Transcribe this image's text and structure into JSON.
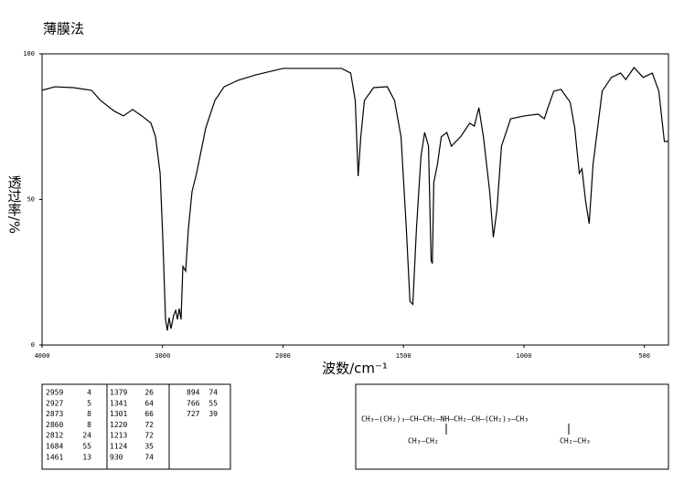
{
  "chart_data": {
    "type": "line",
    "title": "薄膜法",
    "x_label": "波数/cm⁻¹",
    "y_label": "透过率/%",
    "x": [
      4000,
      3894,
      3742,
      3590,
      3514,
      3400,
      3324,
      3248,
      3172,
      3096,
      3058,
      3020,
      2998,
      2975,
      2960,
      2945,
      2930,
      2907,
      2891,
      2876,
      2861,
      2846,
      2831,
      2808,
      2785,
      2755,
      2717,
      2641,
      2565,
      2489,
      2375,
      2223,
      2000,
      1890,
      1757,
      1719,
      1700,
      1688,
      1677,
      1662,
      1624,
      1567,
      1537,
      1510,
      1488,
      1473,
      1461,
      1446,
      1427,
      1412,
      1396,
      1385,
      1380,
      1374,
      1359,
      1343,
      1320,
      1301,
      1263,
      1225,
      1206,
      1187,
      1168,
      1142,
      1127,
      1112,
      1093,
      1055,
      998,
      941,
      915,
      903,
      876,
      846,
      808,
      789,
      770,
      759,
      744,
      729,
      713,
      675,
      637,
      599,
      577,
      543,
      505,
      467,
      440,
      417,
      400
    ],
    "series": [
      {
        "color": "#000000",
        "values": [
          87.5,
          88.7,
          88.4,
          87.5,
          84,
          80.3,
          78.7,
          80.9,
          78.7,
          76.2,
          71.5,
          59,
          37,
          8.8,
          5,
          9.4,
          5.6,
          10.3,
          11.9,
          8.8,
          12.5,
          8.8,
          27,
          25.4,
          40,
          52.7,
          59,
          74.6,
          84,
          88.7,
          90.9,
          92.8,
          95,
          95,
          95,
          93.4,
          84,
          58,
          71.5,
          84,
          88.4,
          88.7,
          84,
          71.5,
          40,
          15,
          14,
          40,
          65,
          73,
          68.3,
          29,
          28,
          55.8,
          62,
          71.5,
          73,
          68.3,
          71.5,
          76.2,
          75.2,
          81.5,
          71.5,
          52.7,
          37,
          46.4,
          68.3,
          77.7,
          78.7,
          79.3,
          77.7,
          80.9,
          87.2,
          87.8,
          83.4,
          74.6,
          59,
          60.5,
          49.5,
          41.7,
          62,
          87.2,
          91.9,
          93.4,
          91.2,
          95.3,
          91.9,
          93.4,
          87.2,
          69.9,
          69.9
        ]
      }
    ],
    "xlim": [
      4000,
      400
    ],
    "xticks": [
      4000,
      3000,
      2000,
      1500,
      1000,
      500
    ],
    "ylim": [
      0,
      100
    ],
    "yticks": [
      0,
      50,
      100
    ]
  },
  "peak_table": {
    "columns": [
      [
        [
          2959,
          4
        ],
        [
          2927,
          5
        ],
        [
          2873,
          8
        ],
        [
          2860,
          8
        ],
        [
          2812,
          24
        ],
        [
          1684,
          55
        ],
        [
          1461,
          13
        ]
      ],
      [
        [
          1379,
          26
        ],
        [
          1341,
          64
        ],
        [
          1301,
          66
        ],
        [
          1220,
          72
        ],
        [
          1213,
          72
        ],
        [
          1124,
          35
        ],
        [
          930,
          74
        ]
      ],
      [
        [
          894,
          74
        ],
        [
          766,
          55
        ],
        [
          727,
          39
        ]
      ]
    ]
  },
  "structure": {
    "main": "CH₃—(CH₂)₃—CH—CH₂—NH—CH₂—CH—(CH₂)₃—CH₃",
    "branch_left": "CH₃—CH₂",
    "branch_right": "CH₂—CH₃"
  }
}
